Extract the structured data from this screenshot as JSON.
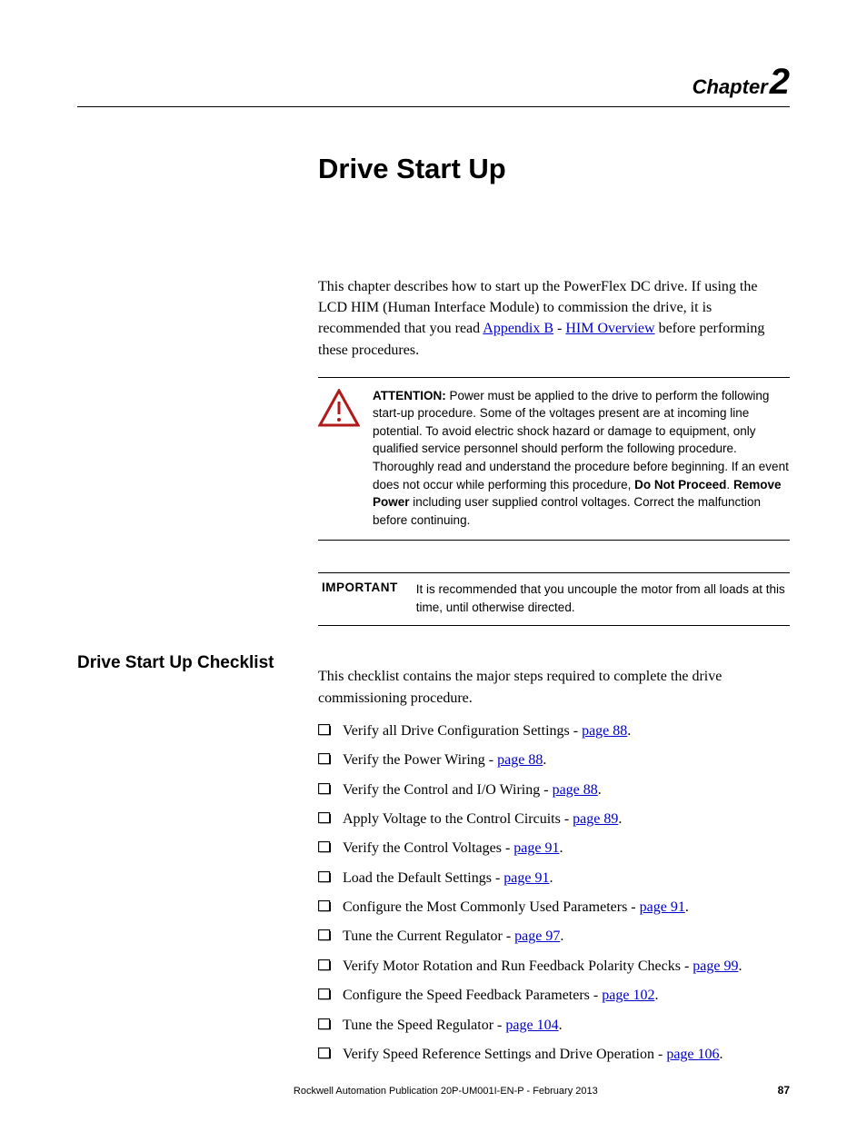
{
  "chapter": {
    "word": "Chapter",
    "number": "2"
  },
  "title": "Drive Start Up",
  "intro": {
    "pre": "This chapter describes how to start up the PowerFlex DC drive. If using the LCD HIM (Human Interface Module) to commission the drive, it is recommended that you read ",
    "link1": "Appendix B",
    "mid": " - ",
    "link2": "HIM Overview",
    "post": " before performing these procedures."
  },
  "attention": {
    "label": "ATTENTION:",
    "p1": " Power must be applied to the drive to perform the following start-up procedure. Some of the voltages present are at incoming line potential. To avoid electric shock hazard or damage to equipment, only qualified service personnel should perform the following procedure. Thoroughly read and understand the procedure before beginning. If an event does not occur while performing this procedure, ",
    "b1": "Do Not Proceed",
    "mid": ". ",
    "b2": "Remove Power",
    "p2": " including user supplied control voltages. Correct the malfunction before continuing.",
    "icon_stroke": "#b11a1a",
    "icon_fill": "#ffffff"
  },
  "important": {
    "label": "IMPORTANT",
    "text": "It is recommended that you uncouple the motor from all loads at this time, until otherwise directed."
  },
  "checklist": {
    "heading": "Drive Start Up Checklist",
    "intro": "This checklist contains the major steps required to complete the drive commissioning procedure.",
    "items": [
      {
        "text": "Verify all Drive Configuration Settings - ",
        "link": "page 88",
        "tail": "."
      },
      {
        "text": "Verify the Power Wiring - ",
        "link": "page 88",
        "tail": "."
      },
      {
        "text": "Verify the Control and I/O Wiring - ",
        "link": "page 88",
        "tail": "."
      },
      {
        "text": "Apply Voltage to the Control Circuits - ",
        "link": "page 89",
        "tail": "."
      },
      {
        "text": "Verify the Control Voltages - ",
        "link": "page 91",
        "tail": "."
      },
      {
        "text": "Load the Default Settings - ",
        "link": "page 91",
        "tail": "."
      },
      {
        "text": "Configure the Most Commonly Used Parameters - ",
        "link": "page 91",
        "tail": "."
      },
      {
        "text": "Tune the Current Regulator - ",
        "link": "page 97",
        "tail": "."
      },
      {
        "text": "Verify Motor Rotation and Run Feedback Polarity Checks - ",
        "link": "page 99",
        "tail": "."
      },
      {
        "text": "Configure the Speed Feedback Parameters - ",
        "link": "page 102",
        "tail": "."
      },
      {
        "text": "Tune the Speed Regulator - ",
        "link": "page 104",
        "tail": "."
      },
      {
        "text": "Verify Speed Reference Settings and Drive Operation - ",
        "link": "page 106",
        "tail": "."
      }
    ]
  },
  "footer": {
    "pub": "Rockwell Automation Publication 20P-UM001I-EN-P - February 2013",
    "page": "87"
  },
  "link_color": "#0000cc"
}
